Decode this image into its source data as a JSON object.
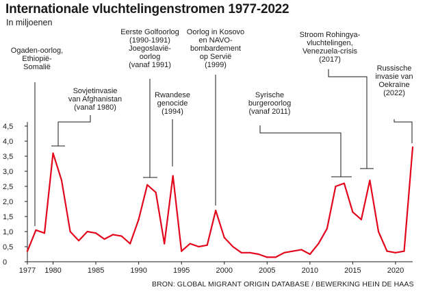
{
  "chart_data": {
    "type": "line",
    "title": "Internationale vluchtelingenstromen 1977-2022",
    "subtitle": "In miljoenen",
    "source": "BRON: GLOBAL MIGRANT ORIGIN DATABASE / BEWERKING HEIN DE HAAS",
    "xlabel": "",
    "ylabel": "",
    "xlim": [
      1977,
      2022
    ],
    "ylim": [
      0,
      4.5
    ],
    "x_ticks": [
      1977,
      1980,
      1985,
      1990,
      1995,
      2000,
      2005,
      2010,
      2015,
      2020
    ],
    "y_ticks": [
      {
        "value": 0,
        "label": "0"
      },
      {
        "value": 0.5,
        "label": "0,5"
      },
      {
        "value": 1,
        "label": "1,0"
      },
      {
        "value": 1.5,
        "label": "1,5"
      },
      {
        "value": 2,
        "label": "2,0"
      },
      {
        "value": 2.5,
        "label": "2,5"
      },
      {
        "value": 3,
        "label": "3,0"
      },
      {
        "value": 3.5,
        "label": "3,5"
      },
      {
        "value": 4,
        "label": "4,0"
      },
      {
        "value": 4.5,
        "label": "4,5"
      }
    ],
    "grid": false,
    "line_color": "#e3051b",
    "series": [
      {
        "x": [
          1977,
          1978,
          1979,
          1980,
          1981,
          1982,
          1983,
          1984,
          1985,
          1986,
          1987,
          1988,
          1989,
          1990,
          1991,
          1992,
          1993,
          1994,
          1995,
          1996,
          1997,
          1998,
          1999,
          2000,
          2001,
          2002,
          2003,
          2004,
          2005,
          2006,
          2007,
          2008,
          2009,
          2010,
          2011,
          2012,
          2013,
          2014,
          2015,
          2016,
          2017,
          2018,
          2019,
          2020,
          2021,
          2022
        ],
        "values": [
          0.35,
          1.05,
          0.95,
          3.6,
          2.7,
          1.0,
          0.7,
          1.0,
          0.95,
          0.75,
          0.9,
          0.85,
          0.6,
          1.4,
          2.55,
          2.3,
          0.6,
          2.85,
          0.35,
          0.6,
          0.5,
          0.55,
          1.7,
          0.8,
          0.5,
          0.3,
          0.3,
          0.25,
          0.15,
          0.15,
          0.3,
          0.35,
          0.4,
          0.25,
          0.6,
          1.1,
          2.5,
          2.6,
          1.65,
          1.4,
          2.7,
          1.0,
          0.35,
          0.3,
          0.35,
          3.8
        ]
      }
    ],
    "annotations": [
      {
        "lines": [
          "Ogaden-oorlog,",
          "Ethiopië-",
          "Somalië"
        ]
      },
      {
        "lines": [
          "Sovjetinvasie",
          "van Afghanistan",
          "(vanaf 1980)"
        ]
      },
      {
        "lines": [
          "Eerste Golfoorlog",
          "(1990-1991)",
          "Joegoslavië-",
          "oorlog",
          "(vanaf 1991)"
        ]
      },
      {
        "lines": [
          "Rwandese",
          "genocide",
          "(1994)"
        ]
      },
      {
        "lines": [
          "Oorlog in Kosovo",
          "en NAVO-",
          "bombardement",
          "op Servië",
          "(1999)"
        ]
      },
      {
        "lines": [
          "Syrische",
          "burgeroorlog",
          "(vanaf 2011)"
        ]
      },
      {
        "lines": [
          "Stroom Rohingya-",
          "vluchtelingen,",
          "Venezuela-crisis",
          "(2017)"
        ]
      },
      {
        "lines": [
          "Russische",
          "invasie van",
          "Oekraïne",
          "(2022)"
        ]
      }
    ]
  }
}
